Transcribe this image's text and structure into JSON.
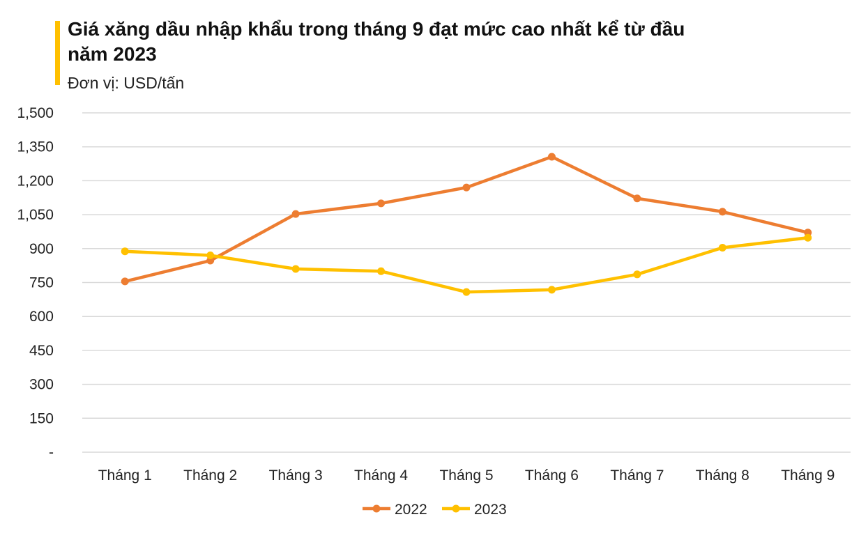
{
  "header": {
    "title": "Giá xăng dầu nhập khẩu trong tháng 9 đạt mức cao nhất kể từ đầu năm 2023",
    "unit": "Đơn vị: USD/tấn",
    "accent_color": "#ffc000"
  },
  "chart_data": {
    "type": "line",
    "title": "Giá xăng dầu nhập khẩu trong tháng 9 đạt mức cao nhất kể từ đầu năm 2023",
    "subtitle": "Đơn vị: USD/tấn",
    "xlabel": "",
    "ylabel": "",
    "categories": [
      "Tháng 1",
      "Tháng 2",
      "Tháng 3",
      "Tháng 4",
      "Tháng 5",
      "Tháng 6",
      "Tháng 7",
      "Tháng 8",
      "Tháng 9"
    ],
    "series": [
      {
        "name": "2022",
        "color": "#ed7d31",
        "values": [
          755,
          847,
          1053,
          1100,
          1170,
          1306,
          1122,
          1063,
          971
        ]
      },
      {
        "name": "2023",
        "color": "#ffc000",
        "values": [
          888,
          870,
          810,
          800,
          708,
          718,
          786,
          904,
          948
        ]
      }
    ],
    "ylim": [
      0,
      1500
    ],
    "yticks": [
      0,
      150,
      300,
      450,
      600,
      750,
      900,
      1050,
      1200,
      1350,
      1500
    ],
    "ytick_labels": [
      "-",
      "150",
      "300",
      "450",
      "600",
      "750",
      "900",
      "1,050",
      "1,200",
      "1,350",
      "1,500"
    ],
    "grid": true,
    "legend": "bottom-center"
  }
}
